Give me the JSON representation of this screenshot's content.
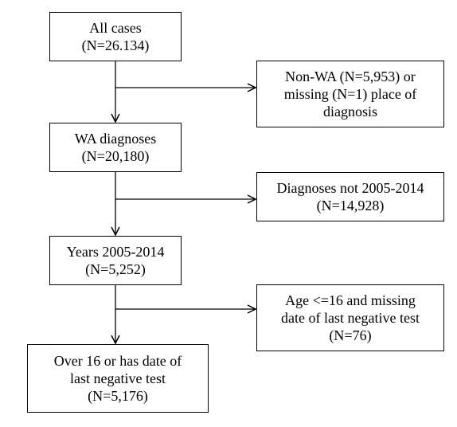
{
  "nodes": {
    "all_cases": {
      "line1": "All cases",
      "line2": "(N=26.134)"
    },
    "excluded_place": {
      "line1": "Non-WA (N=5,953) or",
      "line2": "missing (N=1) place of",
      "line3": "diagnosis"
    },
    "wa_diagnoses": {
      "line1": "WA diagnoses",
      "line2": "(N=20,180)"
    },
    "excluded_years": {
      "line1": "Diagnoses not 2005-2014",
      "line2": "(N=14,928)"
    },
    "years": {
      "line1": "Years 2005-2014",
      "line2": "(N=5,252)"
    },
    "excluded_age": {
      "line1": "Age <=16 and missing",
      "line2": "date of last negative test",
      "line3": "(N=76)"
    },
    "final": {
      "line1": "Over 16 or has date of",
      "line2": "last negative test",
      "line3": "(N=5,176)"
    }
  },
  "colors": {
    "stroke": "#000000",
    "background": "#ffffff"
  }
}
